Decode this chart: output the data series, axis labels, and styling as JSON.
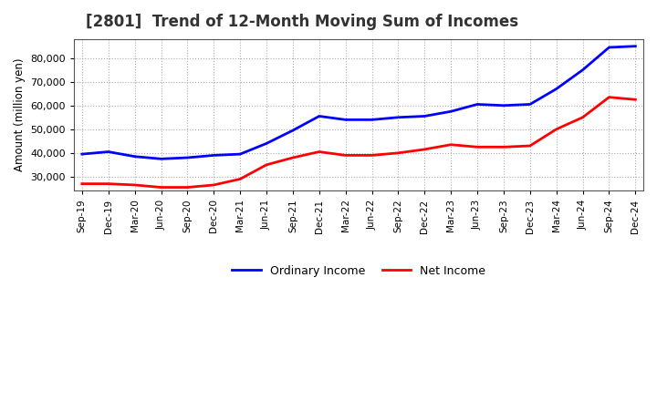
{
  "title": "[2801]  Trend of 12-Month Moving Sum of Incomes",
  "ylabel": "Amount (million yen)",
  "background_color": "#ffffff",
  "grid_color": "#aaaaaa",
  "plot_bg_color": "#ffffff",
  "ordinary_income_color": "#0000ff",
  "net_income_color": "#ff0000",
  "ordinary_income_label": "Ordinary Income",
  "net_income_label": "Net Income",
  "ylim": [
    24000,
    88000
  ],
  "yticks": [
    30000,
    40000,
    50000,
    60000,
    70000,
    80000
  ],
  "labels": [
    "Sep-19",
    "Dec-19",
    "Mar-20",
    "Jun-20",
    "Sep-20",
    "Dec-20",
    "Mar-21",
    "Jun-21",
    "Sep-21",
    "Dec-21",
    "Mar-22",
    "Jun-22",
    "Sep-22",
    "Dec-22",
    "Mar-23",
    "Jun-23",
    "Sep-23",
    "Dec-23",
    "Mar-24",
    "Jun-24",
    "Sep-24",
    "Dec-24"
  ],
  "ordinary_income": [
    39500,
    40500,
    38500,
    37500,
    38000,
    39000,
    39500,
    44000,
    49500,
    55500,
    54000,
    54000,
    55000,
    55500,
    57500,
    60500,
    60000,
    60500,
    67000,
    75000,
    84500,
    85000
  ],
  "net_income": [
    27000,
    27000,
    26500,
    25500,
    25500,
    26500,
    29000,
    35000,
    38000,
    40500,
    39000,
    39000,
    40000,
    41500,
    43500,
    42500,
    42500,
    43000,
    50000,
    55000,
    63500,
    62500
  ]
}
